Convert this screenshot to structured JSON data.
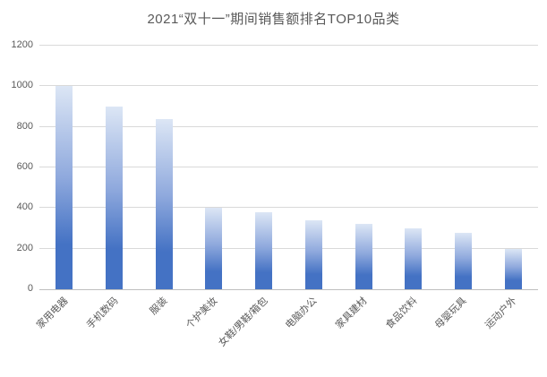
{
  "chart_data": {
    "type": "bar",
    "title": "2021“双十一”期间销售额排名TOP10品类",
    "categories": [
      "家用电器",
      "手机数码",
      "服装",
      "个护美妆",
      "女鞋/男鞋/箱包",
      "电脑办公",
      "家具建材",
      "食品饮料",
      "母婴玩具",
      "运动户外"
    ],
    "values": [
      1000,
      900,
      840,
      400,
      380,
      340,
      320,
      300,
      280,
      200
    ],
    "xlabel": "",
    "ylabel": "",
    "ylim": [
      0,
      1200
    ],
    "yticks": [
      0,
      200,
      400,
      600,
      800,
      1000,
      1200
    ],
    "grid": true,
    "legend": false,
    "colors": {
      "bar_gradient_top": "#dce6f5",
      "bar_gradient_mid": "#8fa9dd",
      "bar_gradient_bottom": "#4472c4",
      "gridline": "#d9d9d9",
      "axis_line": "#bfbfbf",
      "text": "#595959",
      "background": "#ffffff"
    }
  }
}
